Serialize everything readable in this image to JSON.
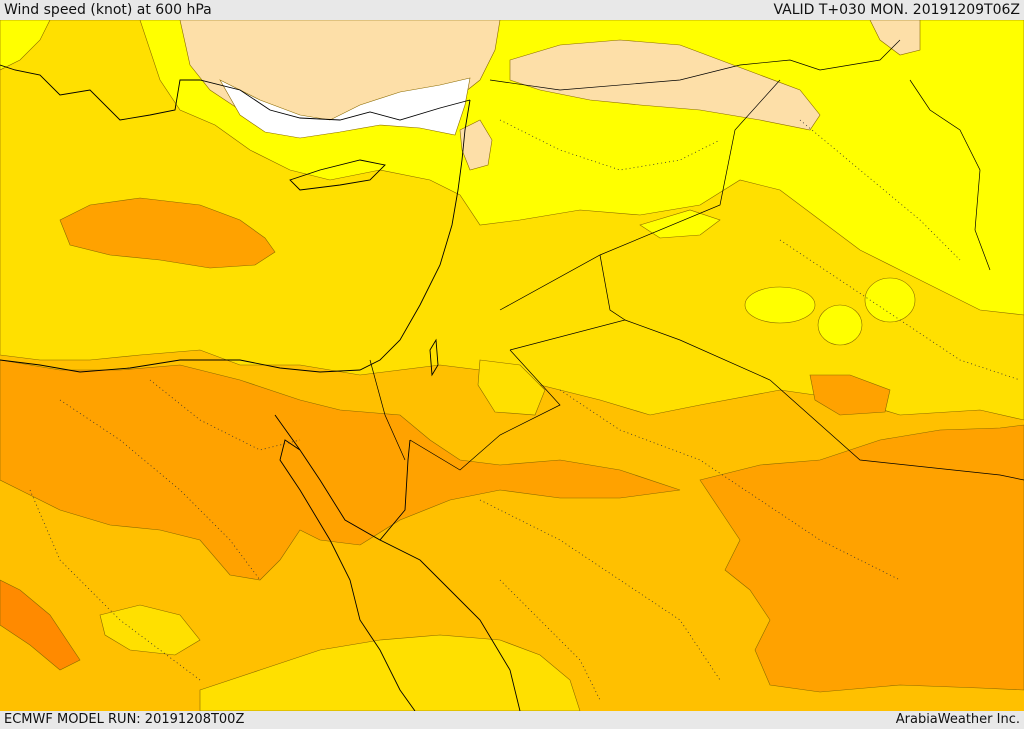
{
  "header": {
    "title": "Wind speed (knot) at 600 hPa",
    "valid": "VALID T+030 MON. 20191209T06Z"
  },
  "footer": {
    "model_run": "ECMWF MODEL RUN: 20191208T00Z",
    "provider": "ArabiaWeather Inc."
  },
  "colors": {
    "white": "#ffffff",
    "peach": "#fddfa8",
    "yellow": "#ffff00",
    "lightgold": "#ffe000",
    "gold": "#ffc000",
    "orange": "#ffa200",
    "darkorange": "#ff8a00"
  }
}
